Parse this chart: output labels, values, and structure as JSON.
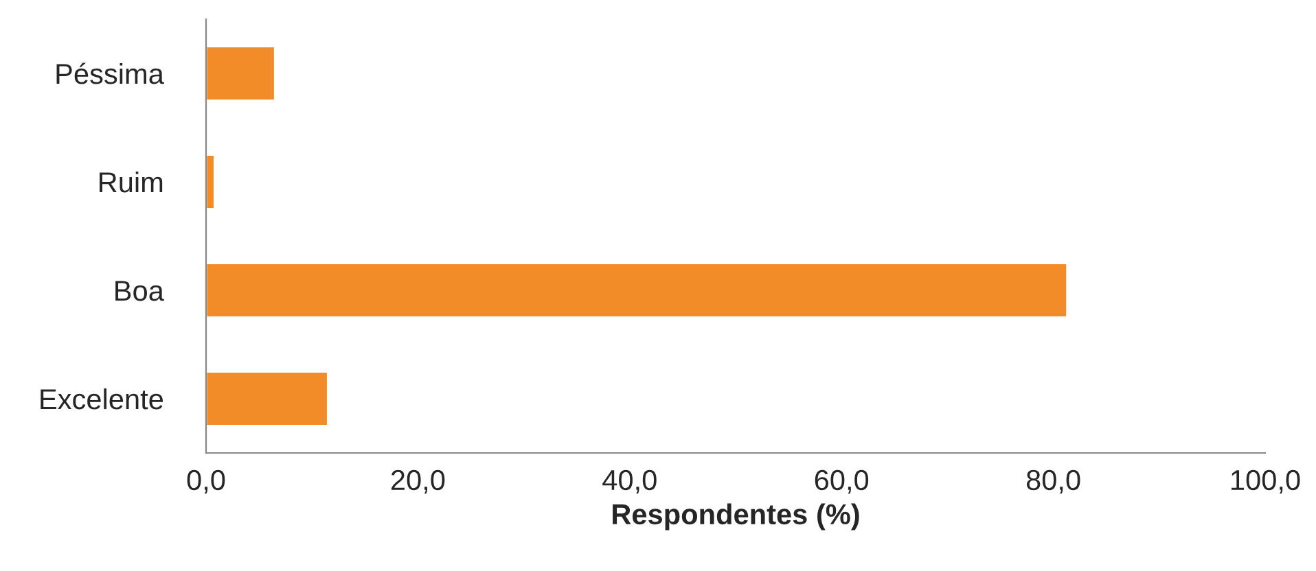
{
  "chart_data": {
    "type": "bar",
    "orientation": "horizontal",
    "xlabel": "Respondentes (%)",
    "categories": [
      "Péssima",
      "Ruim",
      "Boa",
      "Excelente"
    ],
    "values": [
      6.5,
      0.8,
      81.3,
      11.5
    ],
    "color": "#f28c28",
    "xlim": [
      0,
      100
    ],
    "xticks": [
      {
        "value": 0,
        "label": "0,0"
      },
      {
        "value": 20,
        "label": "20,0"
      },
      {
        "value": 40,
        "label": "40,0"
      },
      {
        "value": 60,
        "label": "60,0"
      },
      {
        "value": 80,
        "label": "80,0"
      },
      {
        "value": 100,
        "label": "100,0"
      }
    ],
    "grid": false,
    "legend": false
  }
}
